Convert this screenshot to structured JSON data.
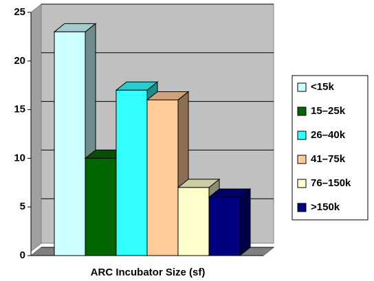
{
  "chart_data": {
    "type": "bar",
    "x_label": "ARC Incubator Size (sf)",
    "series": [
      {
        "name": "<15k",
        "color": "#ccffff",
        "values": [
          23
        ]
      },
      {
        "name": "15–25k",
        "color": "#006600",
        "values": [
          10
        ]
      },
      {
        "name": "26–40k",
        "color": "#33ffff",
        "values": [
          17
        ]
      },
      {
        "name": "41–75k",
        "color": "#ffcc99",
        "values": [
          16
        ]
      },
      {
        "name": "76–150k",
        "color": "#ffffcc",
        "values": [
          7
        ]
      },
      {
        "name": ">150k",
        "color": "#000080",
        "values": [
          6
        ]
      }
    ],
    "ylim": [
      0,
      25
    ],
    "yticks": [
      0,
      5,
      10,
      15,
      20,
      25
    ],
    "grid": true,
    "legend": "right"
  }
}
